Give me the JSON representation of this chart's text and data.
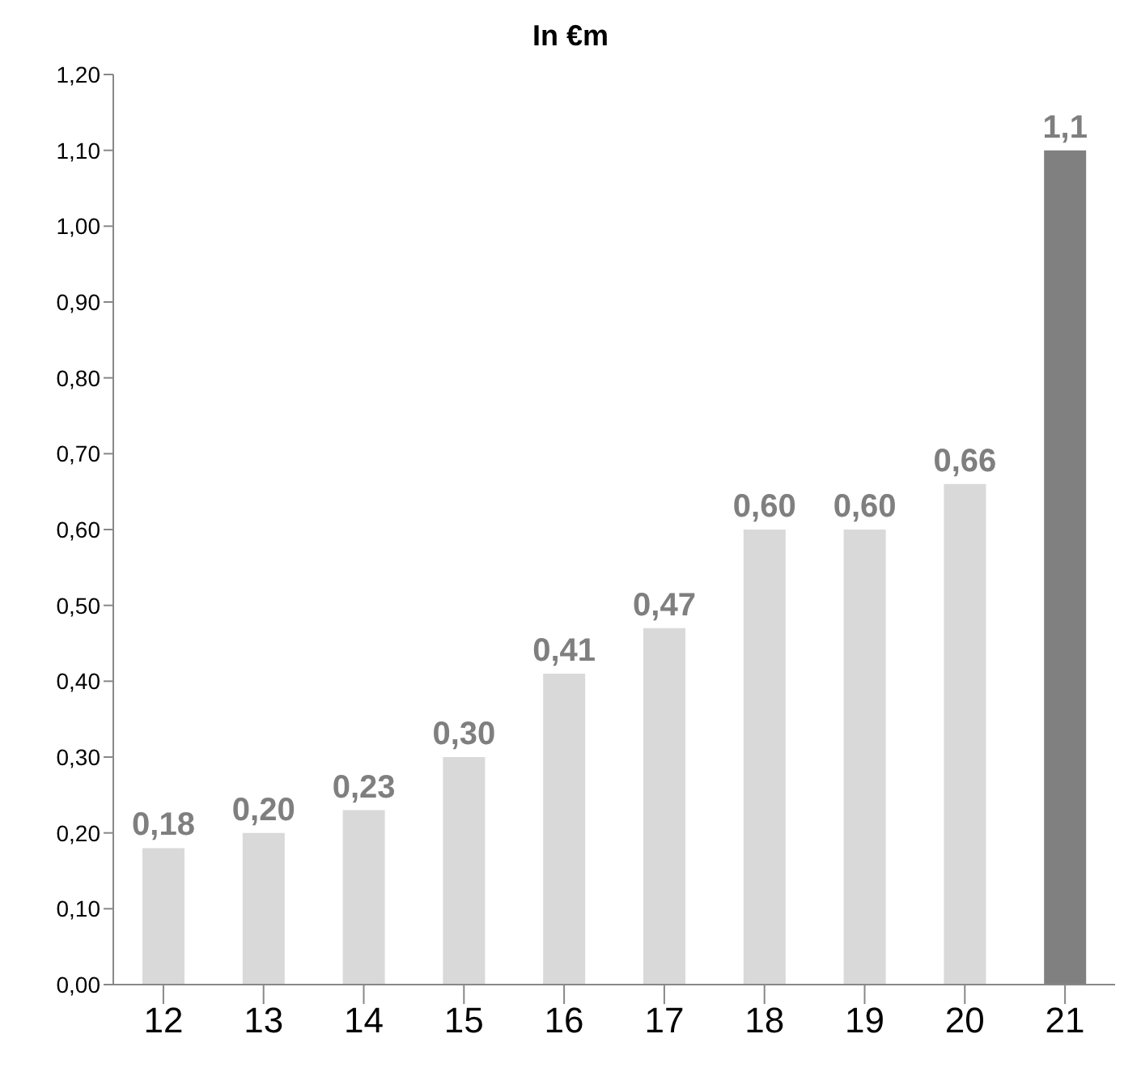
{
  "chart_data": {
    "type": "bar",
    "title": "In €m",
    "categories": [
      "12",
      "13",
      "14",
      "15",
      "16",
      "17",
      "18",
      "19",
      "20",
      "21"
    ],
    "values": [
      0.18,
      0.2,
      0.23,
      0.3,
      0.41,
      0.47,
      0.6,
      0.6,
      0.66,
      1.1
    ],
    "colors": [
      "#d9d9d9",
      "#d9d9d9",
      "#d9d9d9",
      "#d9d9d9",
      "#d9d9d9",
      "#d9d9d9",
      "#d9d9d9",
      "#d9d9d9",
      "#d9d9d9",
      "#808080"
    ],
    "value_labels": [
      "0,18",
      "0,20",
      "0,23",
      "0,30",
      "0,41",
      "0,47",
      "0,60",
      "0,60",
      "0,66",
      "1,1"
    ],
    "ylim": [
      0,
      1.2
    ],
    "yticks": [
      {
        "value": 0,
        "label": "0,00"
      },
      {
        "value": 0.1,
        "label": "0,10"
      },
      {
        "value": 0.2,
        "label": "0,20"
      },
      {
        "value": 0.3,
        "label": "0,30"
      },
      {
        "value": 0.4,
        "label": "0,40"
      },
      {
        "value": 0.5,
        "label": "0,50"
      },
      {
        "value": 0.6,
        "label": "0,60"
      },
      {
        "value": 0.7,
        "label": "0,70"
      },
      {
        "value": 0.8,
        "label": "0,80"
      },
      {
        "value": 0.9,
        "label": "0,90"
      },
      {
        "value": 1.0,
        "label": "1,00"
      },
      {
        "value": 1.1,
        "label": "1,10"
      },
      {
        "value": 1.2,
        "label": "1,20"
      }
    ],
    "grid": false,
    "legend": false
  }
}
